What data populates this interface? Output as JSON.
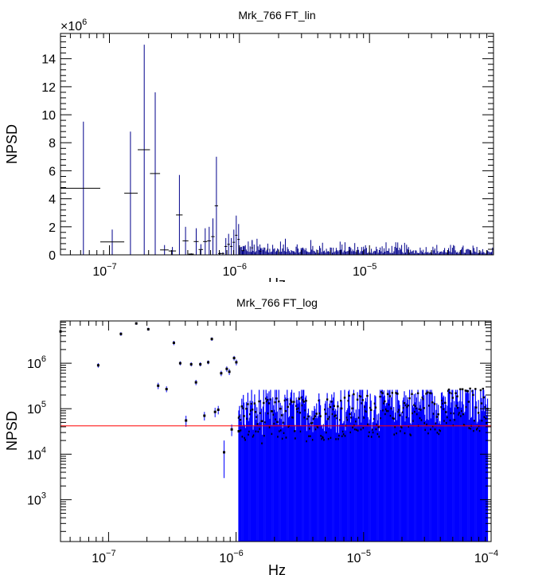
{
  "chart_data": [
    {
      "type": "scatter",
      "title": "Mrk_766 FT_lin",
      "xlabel": "Hz",
      "ylabel": "NPSD",
      "x_scale": "log",
      "y_scale": "linear",
      "xlim": [
        4.2e-08,
        9e-05
      ],
      "ylim": [
        0,
        15800000.0
      ],
      "y_multiplier_label": "×10",
      "y_multiplier_exp": "6",
      "x_ticks": [
        {
          "v": 1e-07,
          "m": "10",
          "e": "−7"
        },
        {
          "v": 1e-06,
          "m": "10",
          "e": "−6"
        },
        {
          "v": 1e-05,
          "m": "10",
          "e": "−5"
        }
      ],
      "y_ticks": [
        {
          "v": 0,
          "label": "0"
        },
        {
          "v": 2000000.0,
          "label": "2"
        },
        {
          "v": 4000000.0,
          "label": "4"
        },
        {
          "v": 6000000.0,
          "label": "6"
        },
        {
          "v": 8000000.0,
          "label": "8"
        },
        {
          "v": 10000000.0,
          "label": "10"
        },
        {
          "v": 12000000.0,
          "label": "12"
        },
        {
          "v": 14000000.0,
          "label": "14"
        }
      ],
      "marker_color": "#000000",
      "error_color": "#00008b",
      "points": [
        {
          "x": 6.3e-08,
          "y": 4750000.0,
          "xlo": 4.2e-08,
          "xhi": 8.5e-08,
          "ylo": 0,
          "yhi": 9500000.0
        },
        {
          "x": 1.05e-07,
          "y": 920000.0,
          "xlo": 8.5e-08,
          "xhi": 1.3e-07,
          "ylo": 0,
          "yhi": 1800000.0
        },
        {
          "x": 1.45e-07,
          "y": 4400000.0,
          "xlo": 1.3e-07,
          "xhi": 1.65e-07,
          "ylo": 0,
          "yhi": 8800000.0
        },
        {
          "x": 1.85e-07,
          "y": 7500000.0,
          "xlo": 1.65e-07,
          "xhi": 2.05e-07,
          "ylo": 0,
          "yhi": 15000000.0
        },
        {
          "x": 2.25e-07,
          "y": 5800000.0,
          "xlo": 2.05e-07,
          "xhi": 2.45e-07,
          "ylo": 0,
          "yhi": 11600000.0
        },
        {
          "x": 2.65e-07,
          "y": 350000.0,
          "xlo": 2.45e-07,
          "xhi": 2.85e-07,
          "ylo": 0,
          "yhi": 700000.0
        },
        {
          "x": 3.05e-07,
          "y": 280000.0,
          "xlo": 2.85e-07,
          "xhi": 3.25e-07,
          "ylo": 0,
          "yhi": 560000.0
        },
        {
          "x": 3.45e-07,
          "y": 2850000.0,
          "xlo": 3.25e-07,
          "xhi": 3.65e-07,
          "ylo": 0,
          "yhi": 5700000.0
        },
        {
          "x": 3.85e-07,
          "y": 1000000.0,
          "xlo": 3.65e-07,
          "xhi": 4.05e-07,
          "ylo": 0,
          "yhi": 2000000.0
        },
        {
          "x": 4.25e-07,
          "y": 55000.0,
          "xlo": 4.05e-07,
          "xhi": 4.45e-07,
          "ylo": 0,
          "yhi": 110000.0
        },
        {
          "x": 4.65e-07,
          "y": 950000.0,
          "xlo": 4.45e-07,
          "xhi": 4.85e-07,
          "ylo": 0,
          "yhi": 1900000.0
        },
        {
          "x": 5.05e-07,
          "y": 380000.0,
          "xlo": 4.85e-07,
          "xhi": 5.25e-07,
          "ylo": 0,
          "yhi": 760000.0
        },
        {
          "x": 5.45e-07,
          "y": 950000.0,
          "xlo": 5.25e-07,
          "xhi": 5.65e-07,
          "ylo": 0,
          "yhi": 1900000.0
        },
        {
          "x": 5.85e-07,
          "y": 1000000.0,
          "xlo": 5.65e-07,
          "xhi": 6.05e-07,
          "ylo": 0,
          "yhi": 2000000.0
        },
        {
          "x": 6.25e-07,
          "y": 1300000.0,
          "xlo": 6.05e-07,
          "xhi": 6.45e-07,
          "ylo": 0,
          "yhi": 2600000.0
        },
        {
          "x": 6.65e-07,
          "y": 3500000.0,
          "xlo": 6.45e-07,
          "xhi": 6.85e-07,
          "ylo": 0,
          "yhi": 7000000.0
        },
        {
          "x": 7.05e-07,
          "y": 90000.0,
          "xlo": 6.85e-07,
          "xhi": 7.25e-07,
          "ylo": 0,
          "yhi": 180000.0
        },
        {
          "x": 7.45e-07,
          "y": 95000.0,
          "xlo": 7.25e-07,
          "xhi": 7.65e-07,
          "ylo": 0,
          "yhi": 190000.0
        },
        {
          "x": 7.85e-07,
          "y": 600000.0,
          "xlo": 7.65e-07,
          "xhi": 8.05e-07,
          "ylo": 0,
          "yhi": 1200000.0
        },
        {
          "x": 8.25e-07,
          "y": 750000.0,
          "xlo": 8.05e-07,
          "xhi": 8.45e-07,
          "ylo": 0,
          "yhi": 1500000.0
        },
        {
          "x": 8.65e-07,
          "y": 600000.0,
          "xlo": 8.45e-07,
          "xhi": 8.85e-07,
          "ylo": 0,
          "yhi": 1200000.0
        },
        {
          "x": 9.05e-07,
          "y": 900000.0,
          "xlo": 8.85e-07,
          "xhi": 9.25e-07,
          "ylo": 0,
          "yhi": 1800000.0
        },
        {
          "x": 9.45e-07,
          "y": 1400000.0,
          "xlo": 9.25e-07,
          "xhi": 9.65e-07,
          "ylo": 0,
          "yhi": 2800000.0
        },
        {
          "x": 9.85e-07,
          "y": 1100000.0,
          "xlo": 9.65e-07,
          "xhi": 1.005e-06,
          "ylo": 0,
          "yhi": 2200000.0
        },
        {
          "x": 1.065e-06,
          "y": 300000.0,
          "xlo": 1.04e-06,
          "xhi": 1.09e-06,
          "ylo": 0,
          "yhi": 600000.0
        },
        {
          "x": 1.25e-06,
          "y": 500000.0,
          "xlo": 1.23e-06,
          "xhi": 1.27e-06,
          "ylo": 0,
          "yhi": 1000000.0
        },
        {
          "x": 1.45e-06,
          "y": 250000.0,
          "xlo": 1.43e-06,
          "xhi": 1.47e-06,
          "ylo": 0,
          "yhi": 500000.0
        },
        {
          "x": 1.65e-06,
          "y": 400000.0,
          "xlo": 1.63e-06,
          "xhi": 1.67e-06,
          "ylo": 0,
          "yhi": 800000.0
        }
      ],
      "noise_band": {
        "x_from": 1e-06,
        "x_to": 9e-05,
        "y_max": 1200000.0
      }
    },
    {
      "type": "scatter",
      "title": "Mrk_766 FT_log",
      "xlabel": "Hz",
      "ylabel": "NPSD",
      "x_scale": "log",
      "y_scale": "log",
      "xlim": [
        4.2e-08,
        0.0001
      ],
      "ylim": [
        120,
        8500000.0
      ],
      "x_ticks": [
        {
          "v": 1e-07,
          "m": "10",
          "e": "−7"
        },
        {
          "v": 1e-06,
          "m": "10",
          "e": "−6"
        },
        {
          "v": 1e-05,
          "m": "10",
          "e": "−5"
        },
        {
          "v": 0.0001,
          "m": "10",
          "e": "−4"
        }
      ],
      "y_ticks": [
        {
          "v": 1000.0,
          "m": "10",
          "e": "3"
        },
        {
          "v": 10000.0,
          "m": "10",
          "e": "4"
        },
        {
          "v": 100000.0,
          "m": "10",
          "e": "5"
        },
        {
          "v": 1000000.0,
          "m": "10",
          "e": "6"
        }
      ],
      "reference_line": {
        "y": 42000.0,
        "color": "#ff0000"
      },
      "marker_color": "#000000",
      "error_color": "#0000ff",
      "points": [
        {
          "x": 4.2e-08,
          "y": 5000000.0,
          "ylo": 4500000.0,
          "yhi": 5500000.0
        },
        {
          "x": 8.3e-08,
          "y": 900000.0,
          "ylo": 800000.0,
          "yhi": 1000000.0
        },
        {
          "x": 1.25e-07,
          "y": 4400000.0,
          "ylo": 4000000.0,
          "yhi": 4800000.0
        },
        {
          "x": 1.65e-07,
          "y": 7500000.0,
          "ylo": 7000000.0,
          "yhi": 8000000.0
        },
        {
          "x": 2.05e-07,
          "y": 5600000.0,
          "ylo": 5200000.0,
          "yhi": 6000000.0
        },
        {
          "x": 2.45e-07,
          "y": 320000.0,
          "ylo": 270000.0,
          "yhi": 370000.0
        },
        {
          "x": 2.85e-07,
          "y": 270000.0,
          "ylo": 230000.0,
          "yhi": 310000.0
        },
        {
          "x": 3.25e-07,
          "y": 2800000.0,
          "ylo": 2500000.0,
          "yhi": 3100000.0
        },
        {
          "x": 3.65e-07,
          "y": 1000000.0,
          "ylo": 900000.0,
          "yhi": 1100000.0
        },
        {
          "x": 4.05e-07,
          "y": 55000.0,
          "ylo": 40000.0,
          "yhi": 70000.0
        },
        {
          "x": 4.45e-07,
          "y": 950000.0,
          "ylo": 850000.0,
          "yhi": 1050000.0
        },
        {
          "x": 4.85e-07,
          "y": 380000.0,
          "ylo": 330000.0,
          "yhi": 430000.0
        },
        {
          "x": 5.25e-07,
          "y": 950000.0,
          "ylo": 850000.0,
          "yhi": 1050000.0
        },
        {
          "x": 5.65e-07,
          "y": 70000.0,
          "ylo": 55000.0,
          "yhi": 85000.0
        },
        {
          "x": 6.05e-07,
          "y": 1050000.0,
          "ylo": 950000.0,
          "yhi": 1150000.0
        },
        {
          "x": 6.45e-07,
          "y": 3400000.0,
          "ylo": 3100000.0,
          "yhi": 3700000.0
        },
        {
          "x": 6.85e-07,
          "y": 85000.0,
          "ylo": 65000.0,
          "yhi": 105000.0
        },
        {
          "x": 7.25e-07,
          "y": 95000.0,
          "ylo": 75000.0,
          "yhi": 115000.0
        },
        {
          "x": 7.65e-07,
          "y": 600000.0,
          "ylo": 520000.0,
          "yhi": 680000.0
        },
        {
          "x": 8.05e-07,
          "y": 11000.0,
          "ylo": 3000.0,
          "yhi": 20000.0
        },
        {
          "x": 8.45e-07,
          "y": 750000.0,
          "ylo": 650000.0,
          "yhi": 850000.0
        },
        {
          "x": 8.85e-07,
          "y": 650000.0,
          "ylo": 550000.0,
          "yhi": 750000.0
        },
        {
          "x": 9.25e-07,
          "y": 35000.0,
          "ylo": 25000.0,
          "yhi": 45000.0
        },
        {
          "x": 9.65e-07,
          "y": 1300000.0,
          "ylo": 1150000.0,
          "yhi": 1450000.0
        },
        {
          "x": 1.005e-06,
          "y": 1050000.0,
          "ylo": 900000.0,
          "yhi": 1200000.0
        },
        {
          "x": 1.05e-06,
          "y": 32000.0,
          "ylo": 20000.0,
          "yhi": 44000.0
        }
      ],
      "noise_band": {
        "x_from": 1.05e-06,
        "x_to": 9.5e-05,
        "ylo_min": 120,
        "y_max": 260000.0
      }
    }
  ]
}
